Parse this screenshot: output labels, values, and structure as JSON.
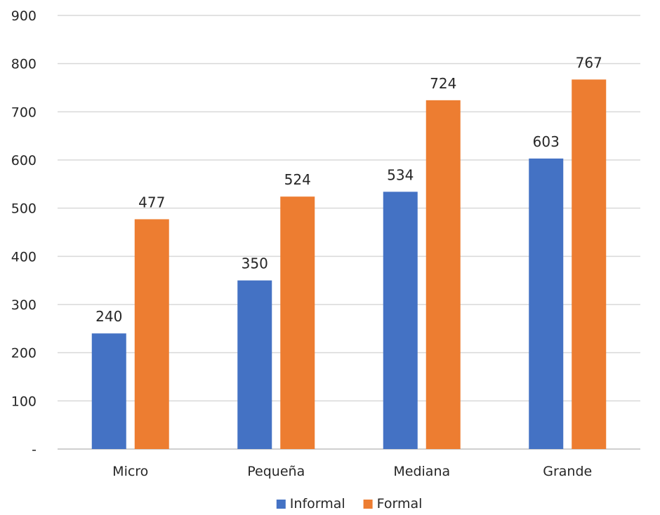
{
  "chart_data": {
    "type": "bar",
    "categories": [
      "Micro",
      "Pequeña",
      "Mediana",
      "Grande"
    ],
    "series": [
      {
        "name": "Informal",
        "values": [
          240,
          350,
          534,
          603
        ],
        "color": "#4472C4"
      },
      {
        "name": "Formal",
        "values": [
          477,
          524,
          724,
          767
        ],
        "color": "#ED7D31"
      }
    ],
    "yticks": [
      0,
      100,
      200,
      300,
      400,
      500,
      600,
      700,
      800,
      900
    ],
    "ytick_labels": [
      "-",
      "100",
      "200",
      "300",
      "400",
      "500",
      "600",
      "700",
      "800",
      "900"
    ],
    "ylim": [
      0,
      900
    ],
    "grid": true,
    "legend": "bottom-center",
    "data_labels": true
  }
}
